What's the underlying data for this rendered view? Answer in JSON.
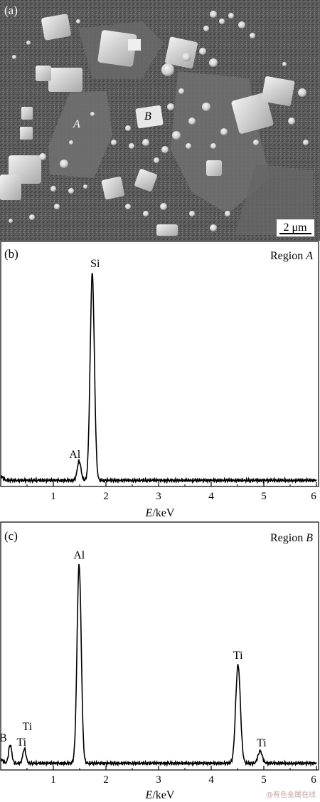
{
  "panel_a": {
    "label": "(a)",
    "region_a": "A",
    "region_b": "B",
    "scale_bar": "2 μm"
  },
  "panel_b": {
    "label": "(b)",
    "region_prefix": "Region ",
    "region_name": "A"
  },
  "panel_c": {
    "label": "(c)",
    "region_prefix": "Region ",
    "region_name": "B"
  },
  "watermark": "@有色金属在线",
  "chart_data": [
    {
      "type": "line",
      "title": "",
      "xlabel_var": "E",
      "xlabel_unit": "/keV",
      "ylabel": "",
      "xlim": [
        0,
        6
      ],
      "ylim": [
        0,
        1
      ],
      "xticks": [
        "1",
        "2",
        "3",
        "4",
        "5",
        "6"
      ],
      "peaks": [
        {
          "element": "Al",
          "x": 1.49,
          "height": 0.09,
          "width": 0.035
        },
        {
          "element": "Si",
          "x": 1.74,
          "height": 0.97,
          "width": 0.04
        }
      ],
      "peak_labels": [
        {
          "text": "Al",
          "x": 1.49
        },
        {
          "text": "Si",
          "x": 1.74
        }
      ]
    },
    {
      "type": "line",
      "title": "",
      "xlabel_var": "E",
      "xlabel_unit": "/keV",
      "ylabel": "",
      "xlim": [
        0,
        6
      ],
      "ylim": [
        0,
        1
      ],
      "xticks": [
        "1",
        "2",
        "3",
        "4",
        "5",
        "6"
      ],
      "peaks": [
        {
          "element": "B",
          "x": 0.18,
          "height": 0.09,
          "width": 0.03
        },
        {
          "element": "Ti",
          "x": 0.45,
          "height": 0.07,
          "width": 0.03
        },
        {
          "element": "Al",
          "x": 1.49,
          "height": 0.97,
          "width": 0.04
        },
        {
          "element": "Ti",
          "x": 4.51,
          "height": 0.48,
          "width": 0.045
        },
        {
          "element": "Ti",
          "x": 4.93,
          "height": 0.06,
          "width": 0.04
        }
      ],
      "peak_labels": [
        {
          "text": "B",
          "x": 0.18
        },
        {
          "text": "Ti",
          "x": 0.45
        },
        {
          "text": "Ti",
          "x": 0.45
        },
        {
          "text": "Al",
          "x": 1.49
        },
        {
          "text": "Ti",
          "x": 4.51
        },
        {
          "text": "Ti",
          "x": 4.93
        }
      ]
    }
  ]
}
